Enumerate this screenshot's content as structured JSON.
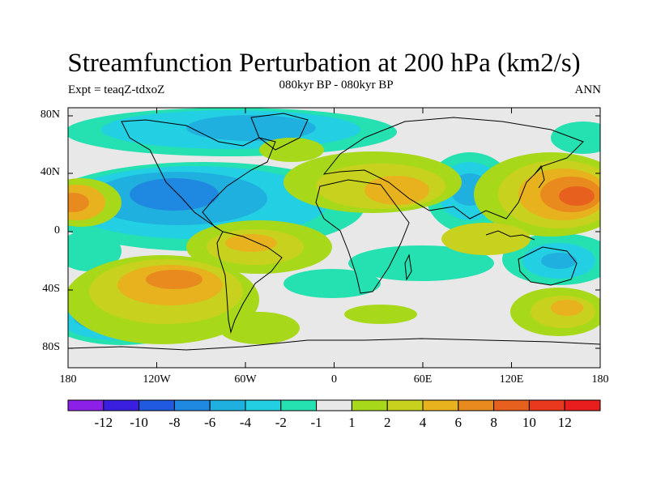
{
  "title": "Streamfunction Perturbation at 200 hPa (km2/s)",
  "subtitle_left": "Expt = teaqZ-tdxoZ",
  "subtitle_center": "080kyr BP - 080kyr BP",
  "subtitle_right": "ANN",
  "map": {
    "projection": "cylindrical equidistant",
    "lon_range": [
      -180,
      180
    ],
    "lat_range": [
      -90,
      90
    ],
    "lat_ticks": [
      "80N",
      "40N",
      "0",
      "40S",
      "80S"
    ],
    "lon_ticks": [
      "180",
      "120W",
      "60W",
      "0",
      "60E",
      "120E",
      "180"
    ]
  },
  "colorbar": {
    "labels": [
      "-12",
      "-10",
      "-8",
      "-6",
      "-4",
      "-2",
      "-1",
      "1",
      "2",
      "4",
      "6",
      "8",
      "10",
      "12"
    ],
    "colors": [
      "#8c1fe8",
      "#3a1fe0",
      "#1f5ae0",
      "#1f88e0",
      "#20b0e0",
      "#23cfe2",
      "#25e0b0",
      "#e8e8e8",
      "#a8d81a",
      "#c8d21e",
      "#e8b21e",
      "#e88a1e",
      "#e8601e",
      "#e8381e",
      "#e81e1e"
    ]
  },
  "colors": {
    "background": "#e8e8e8",
    "coast": "#000000"
  }
}
